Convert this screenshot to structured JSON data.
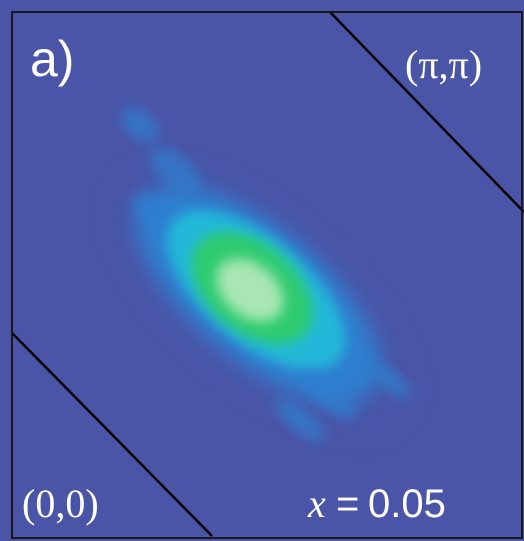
{
  "chart_data": {
    "type": "heatmap",
    "panel_label": "a)",
    "corner_label_top_right": "(π,π)",
    "corner_label_bottom_left": "(0,0)",
    "x_var": "x",
    "x_value": "0.05",
    "background_color": "#4A55A7",
    "colormap": [
      "#4A55A7",
      "#2D7FD0",
      "#23B7D9",
      "#2FCB6F",
      "#A8E6B4"
    ],
    "intensity_levels": [
      0.2,
      0.4,
      0.6,
      0.8,
      1.0
    ]
  }
}
